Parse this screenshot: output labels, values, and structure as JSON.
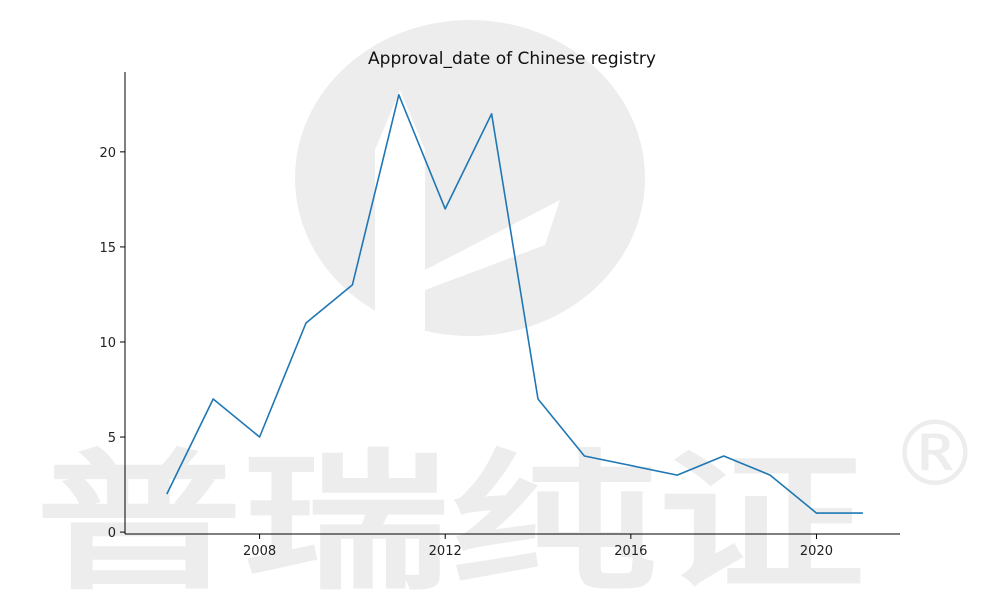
{
  "watermark": {
    "text": "普瑞纯证",
    "registered_mark": "®",
    "color": "#ededed"
  },
  "chart_data": {
    "type": "line",
    "title": "Approval_date of Chinese registry",
    "xlabel": "",
    "ylabel": "",
    "x": [
      2006,
      2007,
      2008,
      2009,
      2010,
      2011,
      2012,
      2013,
      2014,
      2015,
      2017,
      2018,
      2019,
      2020,
      2021
    ],
    "series": [
      {
        "color": "#1f77b4",
        "values": [
          2,
          7,
          5,
          11,
          13,
          23,
          17,
          22,
          7,
          4,
          3,
          4,
          3,
          1,
          1
        ]
      }
    ],
    "xlim": [
      2005.1,
      2021.8
    ],
    "ylim": [
      -0.1,
      24.2
    ],
    "xticks": [
      2008,
      2012,
      2016,
      2020
    ],
    "yticks": [
      0,
      5,
      10,
      15,
      20
    ],
    "grid": false,
    "legend": false,
    "spines": [
      "left",
      "bottom"
    ]
  }
}
